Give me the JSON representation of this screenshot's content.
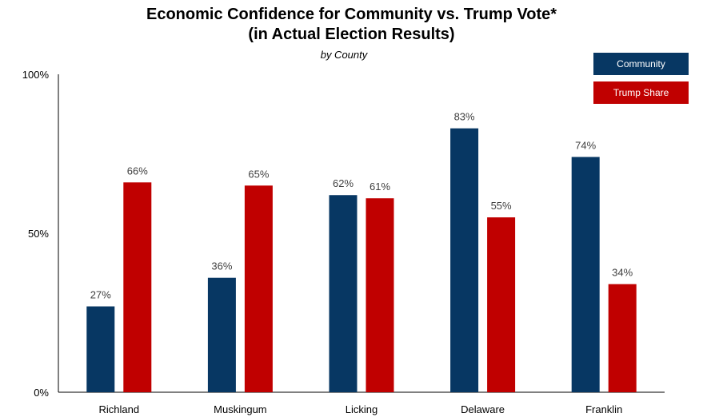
{
  "chart_data": {
    "type": "bar",
    "title_line1": "Economic Confidence for Community vs. Trump Vote*",
    "title_line2": "(in Actual Election Results)",
    "subtitle": "by County",
    "categories": [
      "Richland",
      "Muskingum",
      "Licking",
      "Delaware",
      "Franklin"
    ],
    "series": [
      {
        "name": "Community",
        "color": "#073763",
        "values": [
          27,
          36,
          62,
          83,
          74
        ]
      },
      {
        "name": "Trump Share",
        "color": "#c00000",
        "values": [
          66,
          65,
          61,
          55,
          34
        ]
      }
    ],
    "data_labels": [
      [
        "27%",
        "36%",
        "62%",
        "83%",
        "74%"
      ],
      [
        "66%",
        "65%",
        "61%",
        "55%",
        "34%"
      ]
    ],
    "ylim": [
      0,
      100
    ],
    "yticks": [
      0,
      50,
      100
    ],
    "ytick_labels": [
      "0%",
      "50%",
      "100%"
    ],
    "legend_position": "top-right",
    "grid": false
  }
}
